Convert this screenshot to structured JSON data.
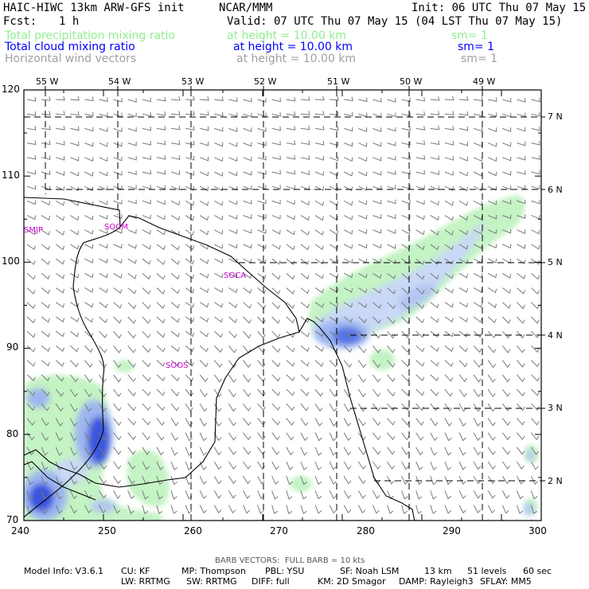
{
  "header": {
    "model_title": "HAIC-HIWC 13km ARW-GFS init",
    "org": "NCAR/MMM",
    "init_time": "Init: 06 UTC Thu 07 May 15",
    "fcst_label": "Fcst:",
    "fcst_value": "1 h",
    "valid_time": "Valid: 07 UTC Thu 07 May 15 (04 LST Thu 07 May 15)"
  },
  "fields": [
    {
      "name": "Total precipitation mixing ratio",
      "height": "at height = 10.00 km",
      "sm": "sm= 1",
      "color": "#90ee90"
    },
    {
      "name": "Total cloud mixing ratio",
      "height": "at height = 10.00 km",
      "sm": "sm= 1",
      "color": "#0000ff"
    },
    {
      "name": "Horizontal wind vectors",
      "height": "at height = 10.00 km",
      "sm": "sm= 1",
      "color": "#a0a0a0"
    }
  ],
  "map": {
    "x_ticks": [
      "240",
      "250",
      "260",
      "270",
      "280",
      "290",
      "300"
    ],
    "y_ticks": [
      "70",
      "80",
      "90",
      "100",
      "110",
      "120"
    ],
    "lon_labels": [
      "55 W",
      "54 W",
      "53 W",
      "52 W",
      "51 W",
      "50 W",
      "49 W"
    ],
    "lat_labels": [
      "7 N",
      "6 N",
      "5 N",
      "4 N",
      "3 N",
      "2 N"
    ],
    "stations": [
      "SMJP",
      "SOCM",
      "SOCA",
      "SOOS"
    ],
    "station_color": "#cc00cc"
  },
  "footer": {
    "barb_note": "BARB VECTORS:  FULL BARB = 10 kts",
    "model_info": "Model Info: V3.6.1",
    "cu": "CU: KF",
    "mp": "MP: Thompson",
    "pbl": "PBL: YSU",
    "sf": "SF: Noah LSM",
    "res": "13 km",
    "levels": "51 levels",
    "step": "60 sec",
    "lw": "LW: RRTMG",
    "sw": "SW: RRTMG",
    "diff": "DIFF: full",
    "km": "KM: 2D Smagor",
    "damp": "DAMP: Rayleigh3",
    "sflay": "SFLAY: MM5"
  }
}
